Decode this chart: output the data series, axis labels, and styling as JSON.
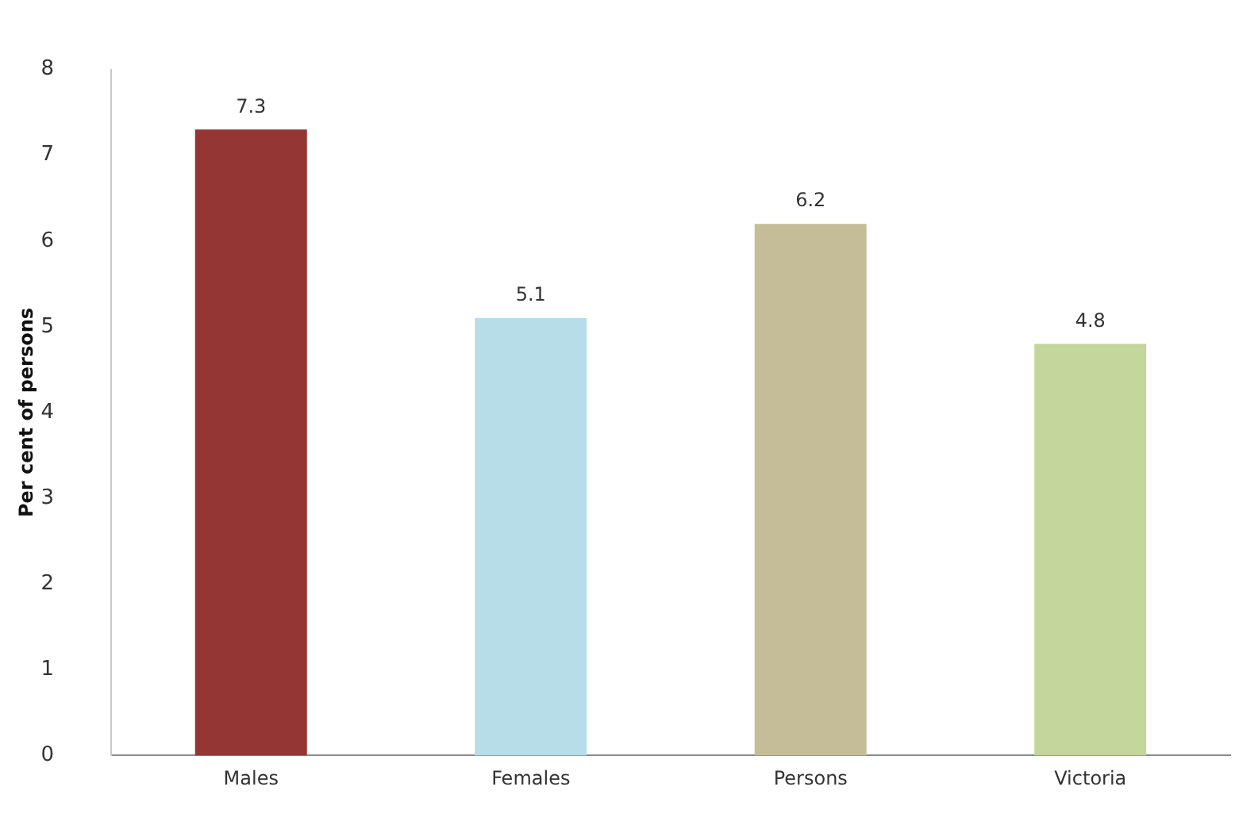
{
  "chart_data": {
    "type": "bar",
    "ylabel": "Per cent of persons",
    "categories": [
      "Males",
      "Females",
      "Persons",
      "Victoria"
    ],
    "values": [
      7.3,
      5.1,
      6.2,
      4.8
    ],
    "colors": [
      "#943634",
      "#b7dde8",
      "#c4bd97",
      "#c3d69b"
    ],
    "ylim": [
      0,
      8
    ],
    "yticks": [
      0,
      1,
      2,
      3,
      4,
      5,
      6,
      7,
      8
    ],
    "grid": false,
    "legend": false,
    "data_labels": true
  }
}
